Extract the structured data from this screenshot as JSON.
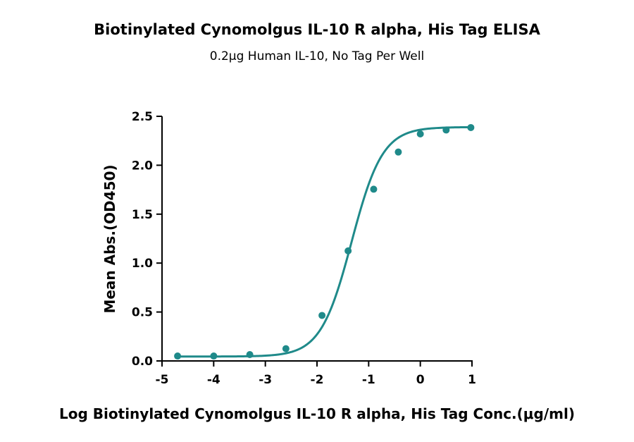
{
  "chart_data": {
    "type": "scatter",
    "title": "Biotinylated Cynomolgus IL-10 R alpha, His Tag ELISA",
    "subtitle": "0.2μg Human IL-10, No Tag Per Well",
    "xlabel": "Log Biotinylated Cynomolgus IL-10 R alpha, His Tag Conc.(μg/ml)",
    "ylabel": "Mean Abs.(OD450)",
    "xlim": [
      -5,
      1
    ],
    "ylim": [
      0,
      2.5
    ],
    "x_ticks": [
      "-5",
      "-4",
      "-3",
      "-2",
      "-1",
      "0",
      "1"
    ],
    "y_ticks": [
      "0.0",
      "0.5",
      "1.0",
      "1.5",
      "2.0",
      "2.5"
    ],
    "grid": false,
    "color": "#1f8a8a",
    "series": [
      {
        "x": [
          -4.699,
          -3.999,
          -3.301,
          -2.602,
          -1.903,
          -1.398,
          -0.903,
          -0.426,
          0.0,
          0.5,
          0.978
        ],
        "y": [
          0.05,
          0.05,
          0.065,
          0.125,
          0.465,
          1.125,
          1.755,
          2.135,
          2.32,
          2.36,
          2.385
        ],
        "fit": "4PL sigmoid",
        "fit_params": {
          "bottom": 0.045,
          "top": 2.39,
          "logEC50": -1.33,
          "hill": 1.45
        }
      }
    ]
  }
}
